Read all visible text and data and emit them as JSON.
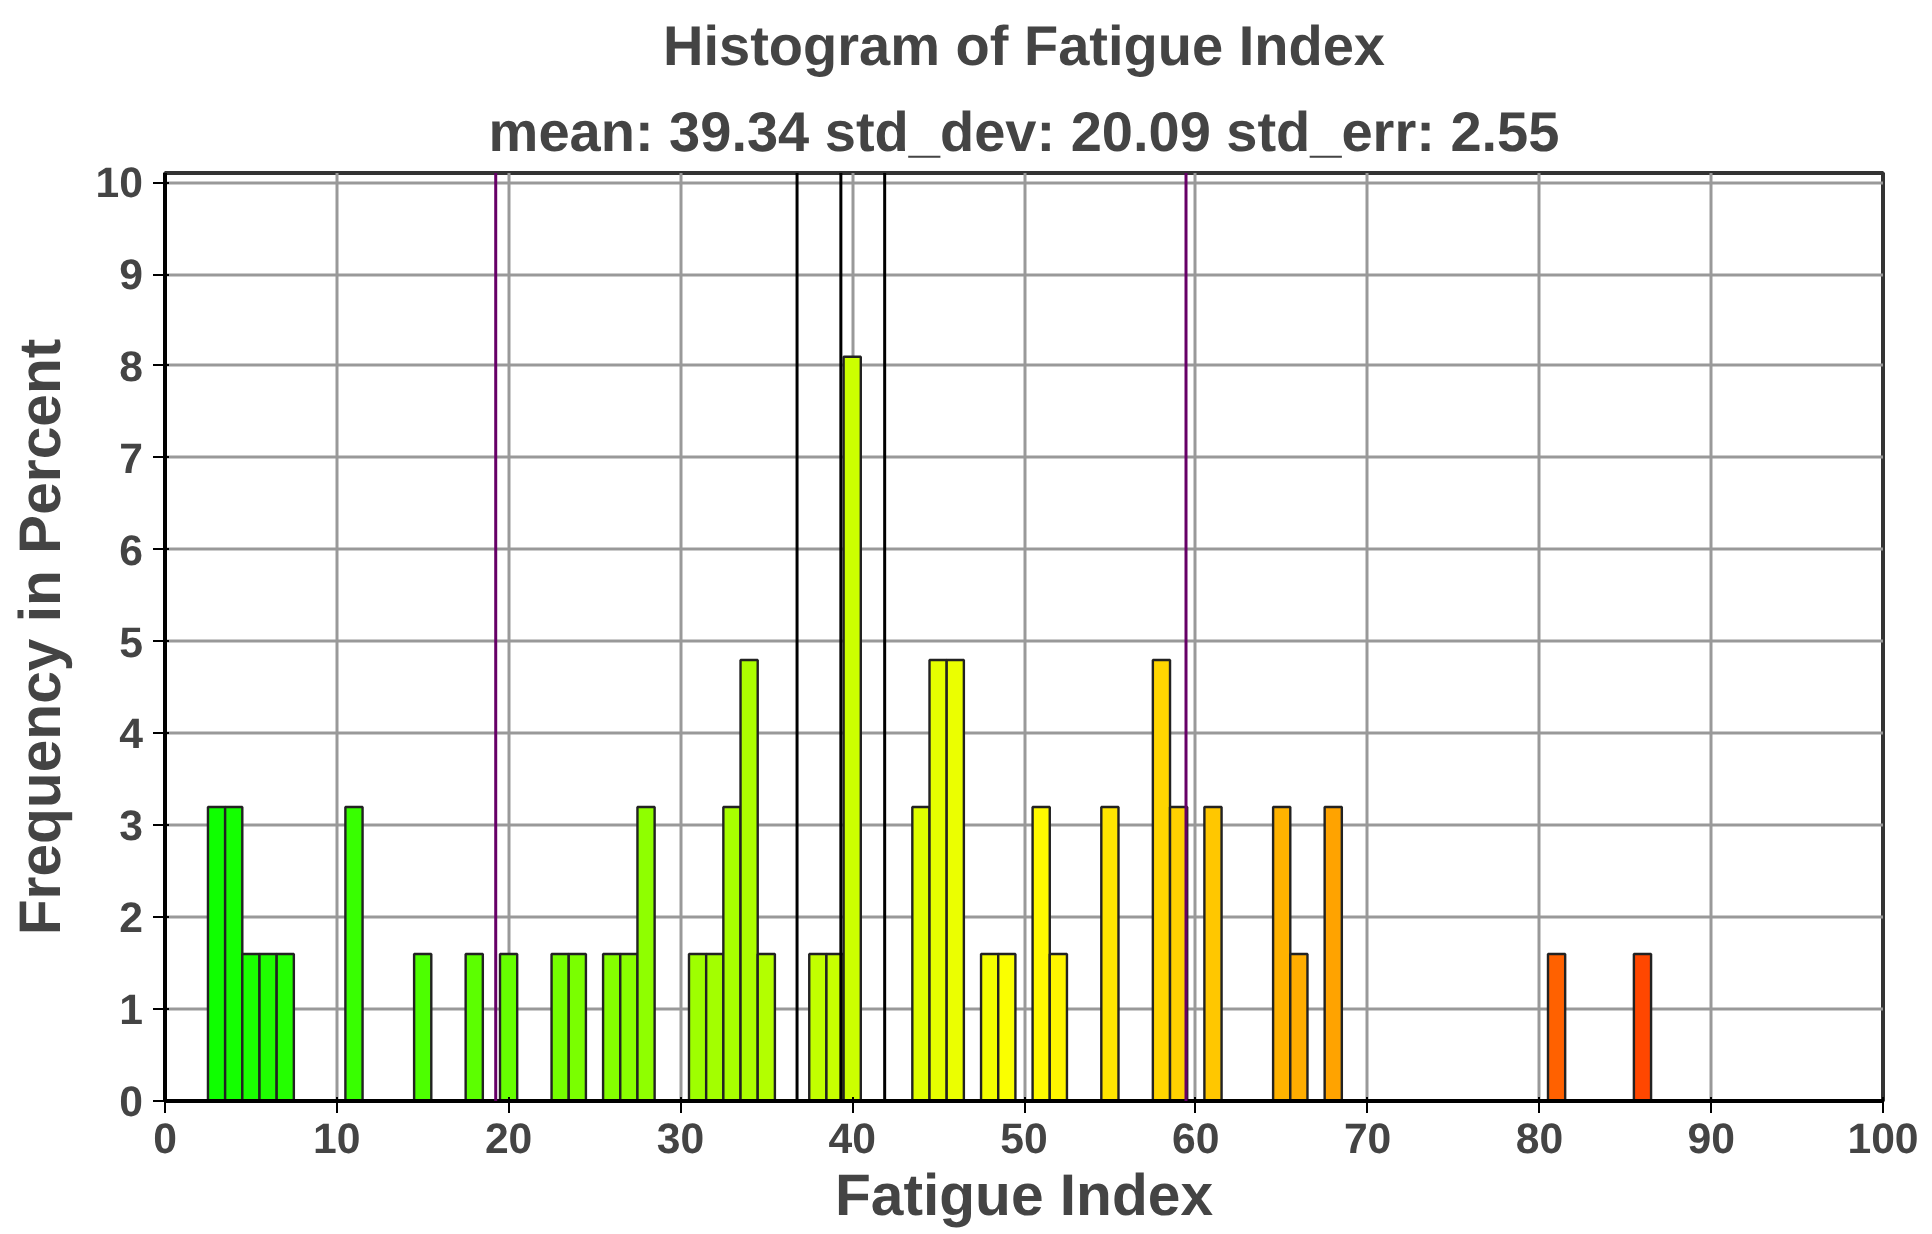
{
  "chart_data": {
    "type": "histogram",
    "title": "Histogram of Fatigue Index",
    "subtitle": "mean: 39.34 std_dev: 20.09 std_err: 2.55",
    "xlabel": "Fatigue Index",
    "ylabel": "Frequency in Percent",
    "bins": [
      2.5,
      3.5,
      4.5,
      5.5,
      6.5,
      7.5,
      8.5,
      9.5,
      10.5,
      11.5,
      12.5,
      13.5,
      14.5,
      15.5,
      16.5,
      17.5,
      18.5,
      19.5,
      20.5,
      21.5,
      22.5,
      23.5,
      24.5,
      25.5,
      26.5,
      27.5,
      28.5,
      29.5,
      30.5,
      31.5,
      32.5,
      33.5,
      34.5,
      35.5,
      36.5,
      37.5,
      38.5,
      39.5,
      40.5,
      41.5,
      42.5,
      43.5,
      44.5,
      45.5,
      46.5,
      47.5,
      48.5,
      49.5,
      50.5,
      51.5,
      52.5,
      53.5,
      54.5,
      55.5,
      56.5,
      57.5,
      58.5,
      59.5,
      60.5,
      61.5,
      62.5,
      63.5,
      64.5,
      65.5,
      66.5,
      67.5,
      68.5,
      69.5,
      70.5,
      71.5,
      72.5,
      73.5,
      74.5,
      75.5,
      76.5,
      77.5,
      78.5,
      79.5,
      80.5,
      81.5,
      82.5,
      83.5,
      84.5,
      85.5,
      86.5
    ],
    "values": [
      3.2,
      3.2,
      1.6,
      1.6,
      1.6,
      0,
      0,
      0,
      3.2,
      0,
      0,
      0,
      1.6,
      0,
      0,
      1.6,
      0,
      1.6,
      0,
      0,
      1.6,
      1.6,
      0,
      1.6,
      1.6,
      3.2,
      0,
      0,
      1.6,
      1.6,
      3.2,
      4.8,
      1.6,
      0,
      0,
      1.6,
      1.6,
      8.1,
      0,
      0,
      0,
      3.2,
      4.8,
      4.8,
      0,
      1.6,
      1.6,
      0,
      3.2,
      1.6,
      0,
      0,
      3.2,
      0,
      0,
      4.8,
      3.2,
      0,
      3.2,
      0,
      0,
      0,
      3.2,
      1.6,
      0,
      3.2,
      0,
      0,
      0,
      0,
      0,
      0,
      0,
      0,
      0,
      0,
      0,
      0,
      1.6,
      0,
      0,
      0,
      0,
      1.6
    ],
    "colors": [
      "#0fff00",
      "#14ff00",
      "#1aff00",
      "#1fff00",
      "#24ff00",
      null,
      null,
      null,
      "#38ff00",
      null,
      null,
      null,
      "#4dff00",
      null,
      null,
      "#5cff00",
      null,
      "#66ff00",
      null,
      null,
      "#75ff00",
      "#7aff00",
      null,
      "#85ff00",
      "#8aff00",
      "#8fff00",
      null,
      null,
      "#9eff00",
      "#a3ff00",
      "#a8ff00",
      "#adff00",
      "#b3ff00",
      null,
      null,
      "#c2ff00",
      "#c7ff00",
      "#ccff00",
      null,
      null,
      null,
      "#e0ff00",
      "#e6ff00",
      "#ebff00",
      null,
      "#f5ff00",
      "#faff00",
      null,
      "#fffa00",
      "#fff500",
      null,
      null,
      "#ffe600",
      null,
      null,
      "#ffd600",
      "#ffd100",
      null,
      "#ffc700",
      null,
      null,
      null,
      "#ffb300",
      "#ffad00",
      null,
      "#ffa300",
      null,
      null,
      null,
      null,
      null,
      null,
      null,
      null,
      null,
      null,
      null,
      null,
      "#ff6100",
      null,
      null,
      null,
      null,
      "#ff4700"
    ],
    "xlim": [
      0,
      100
    ],
    "xticks": [
      0,
      10,
      20,
      30,
      40,
      50,
      60,
      70,
      80,
      90,
      100
    ],
    "ylim": [
      0,
      10.1
    ],
    "yticks": [
      0,
      1,
      2,
      3,
      4,
      5,
      6,
      7,
      8,
      9,
      10
    ],
    "grid": true,
    "ref_lines": [
      {
        "axis": "x",
        "value": 19.25,
        "color": "#660066"
      },
      {
        "axis": "x",
        "value": 59.43,
        "color": "#660066"
      },
      {
        "axis": "x",
        "value": 39.34,
        "color": "#000000"
      },
      {
        "axis": "x",
        "value": 36.79,
        "color": "#000000"
      },
      {
        "axis": "x",
        "value": 41.89,
        "color": "#000000"
      }
    ]
  }
}
